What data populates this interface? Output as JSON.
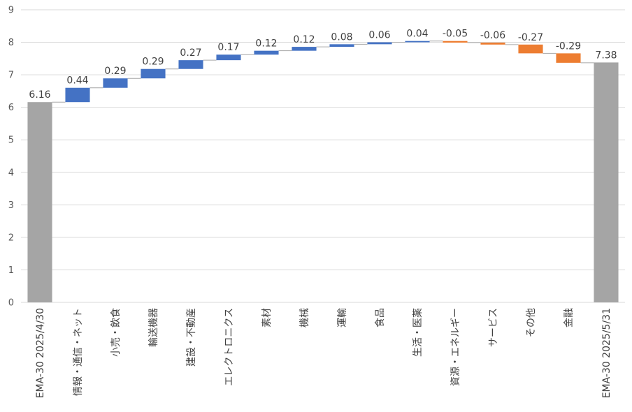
{
  "chart_data": {
    "type": "bar",
    "subtype": "waterfall",
    "title": "",
    "xlabel": "",
    "ylabel": "",
    "ylim": [
      0,
      9
    ],
    "yticks": [
      0,
      1,
      2,
      3,
      4,
      5,
      6,
      7,
      8,
      9
    ],
    "grid": true,
    "legend": "none",
    "categories": [
      "EMA-30 2025/4/30",
      "情報・通信・ネット",
      "小売・飲食",
      "輸送機器",
      "建設・不動産",
      "エレクトロニクス",
      "素材",
      "機械",
      "運輸",
      "食品",
      "生活・医薬",
      "資源・エネルギー",
      "サービス",
      "その他",
      "金融",
      "EMA-30 2025/5/31"
    ],
    "values": [
      6.16,
      0.44,
      0.29,
      0.29,
      0.27,
      0.17,
      0.12,
      0.12,
      0.08,
      0.06,
      0.04,
      -0.05,
      -0.06,
      -0.27,
      -0.29,
      7.38
    ],
    "labels": [
      "6.16",
      "0.44",
      "0.29",
      "0.29",
      "0.27",
      "0.17",
      "0.12",
      "0.12",
      "0.08",
      "0.06",
      "0.04",
      "-0.05",
      "-0.06",
      "-0.27",
      "-0.29",
      "7.38"
    ],
    "kinds": [
      "total",
      "delta",
      "delta",
      "delta",
      "delta",
      "delta",
      "delta",
      "delta",
      "delta",
      "delta",
      "delta",
      "delta",
      "delta",
      "delta",
      "delta",
      "total"
    ],
    "colors": {
      "total": "#a5a5a5",
      "increase": "#4472c4",
      "decrease": "#ed7d31"
    }
  }
}
